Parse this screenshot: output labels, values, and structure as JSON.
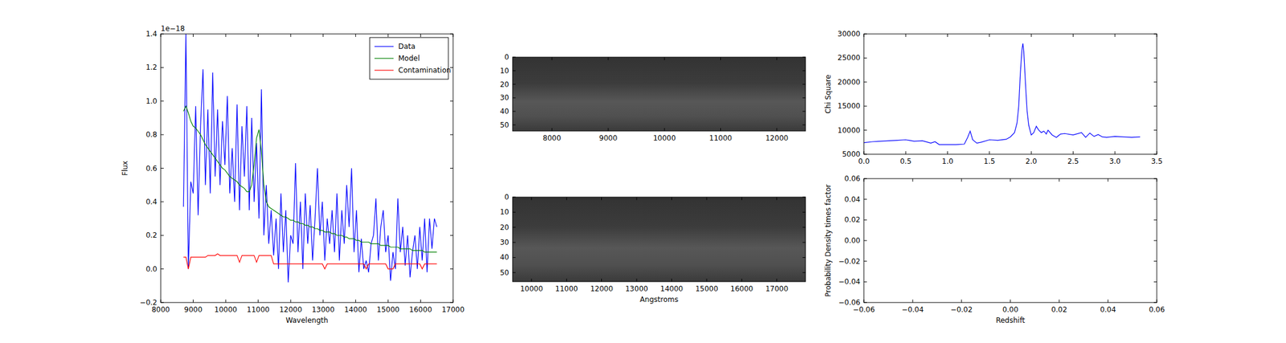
{
  "chart_data": [
    {
      "type": "line",
      "x_label": "Wavelength",
      "y_label": "Flux",
      "annotations": [
        "1e−18"
      ],
      "legend": "upper right",
      "xlim": [
        8000,
        17000
      ],
      "xticks": [
        8000,
        9000,
        10000,
        11000,
        12000,
        13000,
        14000,
        15000,
        16000,
        17000
      ],
      "ylim": [
        -0.2,
        1.4
      ],
      "yticks": [
        {
          "value": -0.2,
          "label": "−0.2"
        },
        {
          "value": 0,
          "label": "0.0"
        },
        {
          "value": 0.2,
          "label": "0.2"
        },
        {
          "value": 0.4,
          "label": "0.4"
        },
        {
          "value": 0.6,
          "label": "0.6"
        },
        {
          "value": 0.8,
          "label": "0.8"
        },
        {
          "value": 1.0,
          "label": "1.0"
        },
        {
          "value": 1.2,
          "label": "1.2"
        },
        {
          "value": 1.4,
          "label": "1.4"
        }
      ],
      "x": [
        8700,
        8775,
        8850,
        8925,
        9000,
        9075,
        9150,
        9225,
        9300,
        9375,
        9450,
        9525,
        9600,
        9675,
        9750,
        9825,
        9900,
        9975,
        10050,
        10125,
        10200,
        10275,
        10350,
        10425,
        10500,
        10575,
        10650,
        10725,
        10800,
        10875,
        10950,
        11025,
        11100,
        11175,
        11250,
        11325,
        11400,
        11475,
        11550,
        11625,
        11700,
        11775,
        11850,
        11925,
        12000,
        12075,
        12150,
        12225,
        12300,
        12375,
        12450,
        12525,
        12600,
        12675,
        12750,
        12825,
        12900,
        12975,
        13050,
        13125,
        13200,
        13275,
        13350,
        13425,
        13500,
        13575,
        13650,
        13725,
        13800,
        13875,
        13950,
        14025,
        14100,
        14175,
        14250,
        14325,
        14400,
        14475,
        14550,
        14625,
        14700,
        14775,
        14850,
        14925,
        15000,
        15075,
        15150,
        15225,
        15300,
        15375,
        15450,
        15525,
        15600,
        15675,
        15750,
        15825,
        15900,
        15975,
        16050,
        16125,
        16200,
        16275,
        16350,
        16425,
        16500
      ],
      "series": [
        {
          "name": "Data",
          "color": "#0000ff",
          "values": [
            0.37,
            1.4,
            0.0,
            0.52,
            0.45,
            0.97,
            0.32,
            0.85,
            1.19,
            0.5,
            0.95,
            0.45,
            1.17,
            0.55,
            0.95,
            0.5,
            0.88,
            0.62,
            1.03,
            0.45,
            0.72,
            0.4,
            0.98,
            0.35,
            0.85,
            0.55,
            0.97,
            0.35,
            0.9,
            0.4,
            0.75,
            0.3,
            1.07,
            0.2,
            0.5,
            0.15,
            0.35,
            0.08,
            0.3,
            0.0,
            0.45,
            0.1,
            0.35,
            -0.08,
            0.2,
            0.15,
            0.63,
            0.1,
            0.4,
            0.0,
            0.45,
            0.15,
            0.38,
            0.05,
            0.3,
            0.6,
            0.2,
            0.4,
            0.05,
            0.3,
            0.15,
            0.35,
            0.1,
            0.45,
            0.05,
            0.35,
            0.15,
            0.5,
            0.25,
            0.6,
            0.1,
            0.35,
            -0.02,
            0.18,
            0.0,
            0.05,
            -0.02,
            0.15,
            0.2,
            0.42,
            0.05,
            0.25,
            0.35,
            0.1,
            0.2,
            -0.07,
            0.1,
            0.0,
            0.42,
            0.1,
            0.25,
            0.02,
            0.2,
            -0.05,
            0.1,
            0.2,
            0.0,
            0.25,
            0.05,
            0.3,
            -0.02,
            0.3,
            0.12,
            0.3,
            0.25
          ]
        },
        {
          "name": "Model",
          "color": "#008000",
          "values": [
            0.94,
            0.97,
            0.93,
            0.88,
            0.85,
            0.84,
            0.82,
            0.8,
            0.77,
            0.74,
            0.72,
            0.7,
            0.68,
            0.66,
            0.64,
            0.62,
            0.6,
            0.59,
            0.57,
            0.55,
            0.54,
            0.53,
            0.52,
            0.5,
            0.49,
            0.48,
            0.46,
            0.46,
            0.5,
            0.62,
            0.78,
            0.83,
            0.7,
            0.5,
            0.4,
            0.37,
            0.36,
            0.35,
            0.34,
            0.33,
            0.32,
            0.31,
            0.31,
            0.3,
            0.29,
            0.29,
            0.28,
            0.28,
            0.27,
            0.27,
            0.26,
            0.26,
            0.25,
            0.25,
            0.24,
            0.24,
            0.23,
            0.23,
            0.22,
            0.22,
            0.22,
            0.21,
            0.21,
            0.2,
            0.2,
            0.2,
            0.19,
            0.19,
            0.18,
            0.18,
            0.18,
            0.17,
            0.17,
            0.16,
            0.16,
            0.16,
            0.16,
            0.15,
            0.15,
            0.15,
            0.15,
            0.14,
            0.14,
            0.14,
            0.14,
            0.13,
            0.13,
            0.13,
            0.13,
            0.12,
            0.12,
            0.12,
            0.12,
            0.12,
            0.11,
            0.11,
            0.11,
            0.11,
            0.11,
            0.1,
            0.1,
            0.1,
            0.1,
            0.1,
            0.1
          ]
        },
        {
          "name": "Contamination",
          "color": "#ff0000",
          "values": [
            0.07,
            0.07,
            0.0,
            0.07,
            0.07,
            0.07,
            0.07,
            0.07,
            0.07,
            0.07,
            0.08,
            0.08,
            0.08,
            0.08,
            0.09,
            0.08,
            0.08,
            0.08,
            0.08,
            0.08,
            0.08,
            0.08,
            0.08,
            0.04,
            0.08,
            0.08,
            0.08,
            0.08,
            0.08,
            0.08,
            0.04,
            0.08,
            0.08,
            0.08,
            0.08,
            0.08,
            0.08,
            0.03,
            0.03,
            0.03,
            0.03,
            0.03,
            0.03,
            0.03,
            0.03,
            0.03,
            0.03,
            0.03,
            0.03,
            0.03,
            0.03,
            0.03,
            0.03,
            0.03,
            0.03,
            0.03,
            0.03,
            0.03,
            0.0,
            0.03,
            0.03,
            0.03,
            0.03,
            0.03,
            0.03,
            0.03,
            0.03,
            0.03,
            0.03,
            0.03,
            0.03,
            0.03,
            0.03,
            0.03,
            0.03,
            0.0,
            0.03,
            0.03,
            0.03,
            0.03,
            0.03,
            0.03,
            0.03,
            0.03,
            0.0,
            0.0,
            0.0,
            0.03,
            0.03,
            0.03,
            0.03,
            0.03,
            0.03,
            0.03,
            0.03,
            0.03,
            0.03,
            0.03,
            0.0,
            0.03,
            0.03,
            0.03,
            0.03,
            0.03,
            0.03
          ]
        }
      ]
    },
    {
      "type": "image",
      "xlim": [
        7300,
        12510
      ],
      "xticks": [
        8000,
        9000,
        10000,
        11000,
        12000
      ],
      "ylim": [
        54.5,
        0
      ],
      "yticks": [
        0,
        10,
        20,
        30,
        40,
        50
      ]
    },
    {
      "type": "image",
      "x_label": "Angstroms",
      "xlim": [
        9460,
        17820
      ],
      "xticks": [
        10000,
        11000,
        12000,
        13000,
        14000,
        15000,
        16000,
        17000
      ],
      "ylim": [
        56,
        0
      ],
      "yticks": [
        0,
        10,
        20,
        30,
        40,
        50
      ]
    },
    {
      "type": "line",
      "y_label": "Chi Square",
      "xlim": [
        0,
        3.5
      ],
      "xticks": [
        {
          "value": 0,
          "label": "0.0"
        },
        {
          "value": 0.5,
          "label": "0.5"
        },
        {
          "value": 1.0,
          "label": "1.0"
        },
        {
          "value": 1.5,
          "label": "1.5"
        },
        {
          "value": 2.0,
          "label": "2.0"
        },
        {
          "value": 2.5,
          "label": "2.5"
        },
        {
          "value": 3.0,
          "label": "3.0"
        },
        {
          "value": 3.5,
          "label": "3.5"
        }
      ],
      "ylim": [
        5000,
        30000
      ],
      "yticks": [
        5000,
        10000,
        15000,
        20000,
        25000,
        30000
      ],
      "x": [
        0,
        0.1,
        0.2,
        0.3,
        0.4,
        0.5,
        0.6,
        0.7,
        0.8,
        0.85,
        0.9,
        1.0,
        1.1,
        1.2,
        1.24,
        1.27,
        1.3,
        1.35,
        1.4,
        1.5,
        1.6,
        1.7,
        1.75,
        1.8,
        1.83,
        1.85,
        1.87,
        1.89,
        1.9,
        1.91,
        1.93,
        1.95,
        1.97,
        2.0,
        2.03,
        2.06,
        2.09,
        2.12,
        2.15,
        2.18,
        2.2,
        2.25,
        2.3,
        2.35,
        2.4,
        2.5,
        2.6,
        2.65,
        2.7,
        2.75,
        2.8,
        2.85,
        2.9,
        3.0,
        3.1,
        3.2,
        3.3
      ],
      "series": [
        {
          "color": "#0000ff",
          "values": [
            7400,
            7600,
            7700,
            7800,
            7900,
            8000,
            7700,
            7800,
            7300,
            7600,
            7000,
            7000,
            7000,
            7100,
            8500,
            9800,
            8000,
            7300,
            7500,
            8000,
            7900,
            8100,
            8600,
            9500,
            11500,
            15000,
            22000,
            27000,
            28000,
            26500,
            20000,
            14000,
            11000,
            9000,
            9500,
            10800,
            10000,
            9500,
            9800,
            9200,
            10000,
            9000,
            8500,
            9200,
            9300,
            9000,
            9500,
            8500,
            9400,
            8700,
            9100,
            8600,
            8500,
            8700,
            8600,
            8500,
            8600
          ]
        }
      ]
    },
    {
      "type": "line",
      "x_label": "Redshift",
      "y_label": "Probability Density times factor",
      "xlim": [
        -0.06,
        0.06
      ],
      "xticks": [
        {
          "value": -0.06,
          "label": "−0.06"
        },
        {
          "value": -0.04,
          "label": "−0.04"
        },
        {
          "value": -0.02,
          "label": "−0.02"
        },
        {
          "value": 0,
          "label": "0.00"
        },
        {
          "value": 0.02,
          "label": "0.02"
        },
        {
          "value": 0.04,
          "label": "0.04"
        },
        {
          "value": 0.06,
          "label": "0.06"
        }
      ],
      "ylim": [
        -0.06,
        0.06
      ],
      "yticks": [
        {
          "value": -0.06,
          "label": "−0.06"
        },
        {
          "value": -0.04,
          "label": "−0.04"
        },
        {
          "value": -0.02,
          "label": "−0.02"
        },
        {
          "value": 0,
          "label": "0.00"
        },
        {
          "value": 0.02,
          "label": "0.02"
        },
        {
          "value": 0.04,
          "label": "0.04"
        },
        {
          "value": 0.06,
          "label": "0.06"
        }
      ],
      "series": []
    }
  ]
}
